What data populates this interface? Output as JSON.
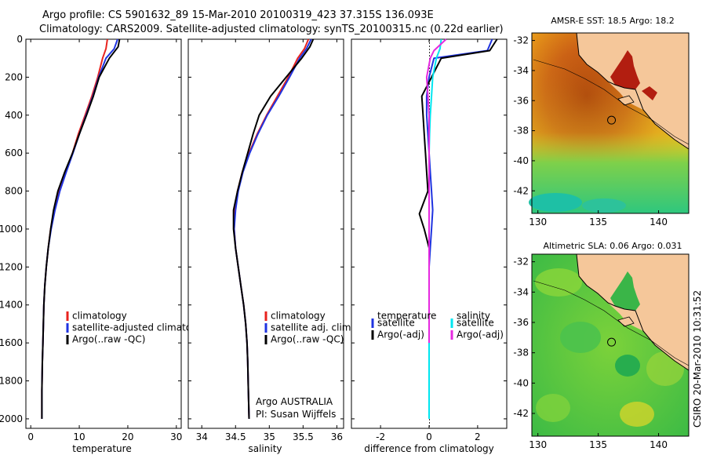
{
  "title_line1": "Argo profile: CS 5901632_89 15-Mar-2010 20100319_423 37.315S 136.093E",
  "title_line2": "Climatology: CARS2009. Satellite-adjusted climatology: synTS_20100315.nc (0.22d earlier)",
  "credit": "CSIRO 20-Mar-2010 10:31:52",
  "institution_line1": "Argo AUSTRALIA",
  "institution_line2": "PI: Susan Wijffels",
  "colors": {
    "climatology": "#e8231e",
    "satellite": "#1f33e0",
    "argo": "#000000",
    "sat_sal": "#00e6f0",
    "argo_sal": "#e629e0",
    "land": "#f5c79a"
  },
  "chart_data": [
    {
      "type": "line",
      "panel": "temperature",
      "xlabel": "temperature",
      "ylabel": "",
      "xlim": [
        -1,
        31
      ],
      "ylim": [
        2050,
        0
      ],
      "xticks": [
        0,
        10,
        20,
        30
      ],
      "yticks": [
        0,
        200,
        400,
        600,
        800,
        1000,
        1200,
        1400,
        1600,
        1800,
        2000
      ],
      "legend": [
        "climatology",
        "satellite-adjusted climatology",
        "Argo(..raw -QC)"
      ],
      "series": [
        {
          "name": "climatology",
          "color": "climatology",
          "x": [
            15.8,
            15.5,
            14.8,
            13.8,
            12.6,
            11.2,
            9.8,
            8.6,
            7.2,
            5.9,
            4.9,
            4.1,
            3.6,
            3.2,
            2.9,
            2.7,
            2.6,
            2.5,
            2.4,
            2.3,
            2.3
          ],
          "y": [
            0,
            50,
            100,
            200,
            300,
            400,
            500,
            600,
            700,
            800,
            900,
            1000,
            1100,
            1200,
            1300,
            1400,
            1500,
            1600,
            1700,
            1850,
            2000
          ]
        },
        {
          "name": "satellite-adjusted climatology",
          "color": "satellite",
          "x": [
            17.9,
            17.2,
            15.5,
            14.0,
            12.8,
            11.4,
            10.0,
            8.7,
            7.3,
            6.0,
            5.0,
            4.2,
            3.6,
            3.2,
            2.9,
            2.7,
            2.6,
            2.5,
            2.4,
            2.3,
            2.3
          ],
          "y": [
            0,
            50,
            100,
            200,
            300,
            400,
            500,
            600,
            700,
            800,
            900,
            1000,
            1100,
            1200,
            1300,
            1400,
            1500,
            1600,
            1700,
            1850,
            2000
          ]
        },
        {
          "name": "Argo(..raw -QC)",
          "color": "argo",
          "x": [
            18.3,
            18.0,
            16.2,
            14.1,
            12.9,
            11.5,
            10.0,
            8.6,
            7.0,
            5.6,
            4.7,
            4.1,
            3.6,
            3.2,
            2.9,
            2.7,
            2.6,
            2.5,
            2.4,
            2.3,
            2.3
          ],
          "y": [
            0,
            40,
            100,
            200,
            300,
            400,
            500,
            600,
            700,
            800,
            900,
            1000,
            1100,
            1200,
            1300,
            1400,
            1500,
            1600,
            1700,
            1850,
            2000
          ]
        }
      ]
    },
    {
      "type": "line",
      "panel": "salinity",
      "xlabel": "salinity",
      "ylabel": "",
      "xlim": [
        33.8,
        36.1
      ],
      "ylim": [
        2050,
        0
      ],
      "xticks": [
        34,
        34.5,
        35,
        35.5,
        36
      ],
      "yticks": [
        0,
        200,
        400,
        600,
        800,
        1000,
        1200,
        1400,
        1600,
        1800,
        2000
      ],
      "legend": [
        "climatology",
        "satellite adj. clim.",
        "Argo(..raw -QC)"
      ],
      "series": [
        {
          "name": "climatology",
          "color": "climatology",
          "x": [
            35.58,
            35.52,
            35.42,
            35.28,
            35.12,
            34.96,
            34.82,
            34.7,
            34.6,
            34.53,
            34.49,
            34.48,
            34.5,
            34.54,
            34.58,
            34.62,
            34.65,
            34.67,
            34.68,
            34.69,
            34.7
          ],
          "y": [
            0,
            50,
            100,
            200,
            300,
            400,
            500,
            600,
            700,
            800,
            900,
            1000,
            1100,
            1200,
            1300,
            1400,
            1500,
            1600,
            1700,
            1850,
            2000
          ]
        },
        {
          "name": "satellite adj. clim.",
          "color": "satellite",
          "x": [
            35.62,
            35.55,
            35.45,
            35.3,
            35.14,
            34.97,
            34.83,
            34.71,
            34.61,
            34.54,
            34.5,
            34.48,
            34.5,
            34.54,
            34.58,
            34.62,
            34.65,
            34.67,
            34.68,
            34.69,
            34.7
          ],
          "y": [
            0,
            50,
            100,
            200,
            300,
            400,
            500,
            600,
            700,
            800,
            900,
            1000,
            1100,
            1200,
            1300,
            1400,
            1500,
            1600,
            1700,
            1850,
            2000
          ]
        },
        {
          "name": "Argo(..raw -QC)",
          "color": "argo",
          "x": [
            35.65,
            35.6,
            35.48,
            35.25,
            35.02,
            34.85,
            34.76,
            34.68,
            34.6,
            34.53,
            34.47,
            34.47,
            34.5,
            34.54,
            34.58,
            34.62,
            34.65,
            34.67,
            34.68,
            34.69,
            34.7
          ],
          "y": [
            0,
            40,
            100,
            200,
            300,
            400,
            500,
            600,
            700,
            800,
            900,
            1000,
            1100,
            1200,
            1300,
            1400,
            1500,
            1600,
            1700,
            1850,
            2000
          ]
        }
      ]
    },
    {
      "type": "line",
      "panel": "difference",
      "xlabel": "difference from climatology",
      "ylabel": "",
      "xlim": [
        -3.2,
        3.2
      ],
      "ylim": [
        2050,
        0
      ],
      "xticks": [
        -2,
        0,
        2
      ],
      "yticks": [
        0,
        200,
        400,
        600,
        800,
        1000,
        1200,
        1400,
        1600,
        1800,
        2000
      ],
      "legend": [
        "temperature",
        "satellite",
        "Argo(-adj)",
        "salinity",
        "satellite",
        "Argo(-adj)"
      ],
      "series": [
        {
          "name": "satellite",
          "color": "satellite",
          "x": [
            2.6,
            2.4,
            0.2,
            0.0,
            -0.1,
            -0.1,
            -0.05,
            0.0,
            0.05,
            0.1,
            0.15,
            0.1,
            0.05,
            0.0,
            0.0,
            0.0,
            0.0,
            0.0,
            0.0,
            0.0
          ],
          "y": [
            0,
            60,
            100,
            200,
            300,
            400,
            500,
            600,
            700,
            800,
            900,
            1000,
            1100,
            1200,
            1300,
            1400,
            1500,
            1600,
            1700,
            1800
          ]
        },
        {
          "name": "Argo(-adj)",
          "color": "argo",
          "x": [
            2.8,
            2.5,
            0.5,
            0.1,
            -0.3,
            -0.25,
            -0.2,
            -0.15,
            -0.1,
            -0.05,
            -0.4,
            -0.2,
            0.0,
            0.0,
            0.0,
            0.0,
            0.0,
            0.0,
            0.0,
            0.0
          ],
          "y": [
            0,
            60,
            100,
            200,
            300,
            400,
            500,
            600,
            700,
            800,
            920,
            1000,
            1100,
            1200,
            1300,
            1400,
            1500,
            1600,
            1700,
            1800
          ]
        },
        {
          "name": "satellite",
          "color": "sat_sal",
          "x": [
            0.5,
            0.45,
            0.3,
            0.15,
            0.1,
            0.05,
            0.02,
            0.0,
            0.0,
            0.0,
            0.0,
            0.0,
            0.0,
            0.0,
            0.0,
            0.0,
            0.0,
            0.0,
            0.0,
            0.0,
            0.0,
            0.0
          ],
          "y": [
            0,
            50,
            100,
            200,
            300,
            400,
            500,
            600,
            700,
            800,
            900,
            1000,
            1100,
            1200,
            1300,
            1400,
            1500,
            1600,
            1700,
            1800,
            1900,
            2000
          ]
        },
        {
          "name": "Argo(-adj)",
          "color": "argo_sal",
          "x": [
            0.7,
            0.2,
            0.05,
            -0.1,
            -0.05,
            0.0,
            0.0,
            0.0,
            0.0,
            0.0,
            0.0,
            0.0,
            0.0,
            0.0,
            0.0,
            0.0,
            0.0,
            0.0
          ],
          "y": [
            0,
            60,
            100,
            200,
            300,
            400,
            500,
            600,
            700,
            800,
            900,
            1000,
            1100,
            1200,
            1300,
            1400,
            1500,
            1600
          ]
        }
      ]
    },
    {
      "type": "heatmap",
      "panel": "sst_map",
      "title": "AMSR-E SST: 18.5 Argo: 18.2",
      "xlim": [
        129.5,
        142.5
      ],
      "ylim": [
        -43.5,
        -31.5
      ],
      "xticks": [
        130,
        135,
        140
      ],
      "yticks": [
        -32,
        -34,
        -36,
        -38,
        -40,
        -42
      ],
      "marker": {
        "lon": 136.1,
        "lat": -37.3
      }
    },
    {
      "type": "heatmap",
      "panel": "sla_map",
      "title": "Altimetric SLA: 0.06 Argo: 0.031",
      "xlim": [
        129.5,
        142.5
      ],
      "ylim": [
        -43.5,
        -31.5
      ],
      "xticks": [
        130,
        135,
        140
      ],
      "yticks": [
        -32,
        -34,
        -36,
        -38,
        -40,
        -42
      ],
      "marker": {
        "lon": 136.1,
        "lat": -37.3
      }
    }
  ]
}
